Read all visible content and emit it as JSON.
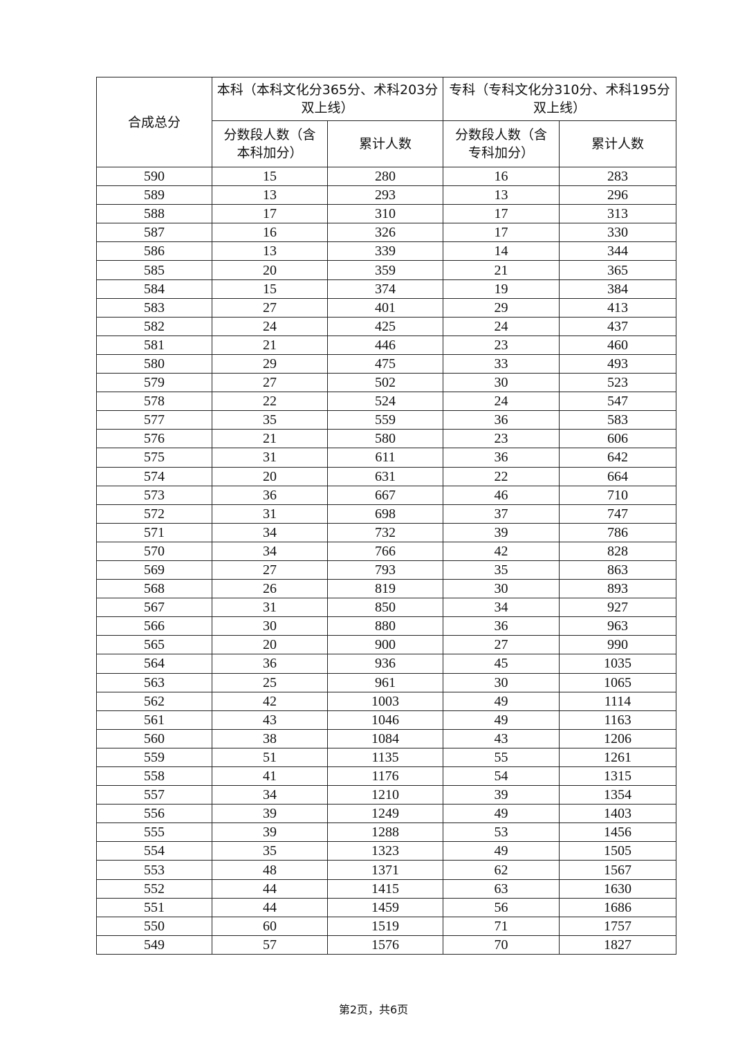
{
  "table": {
    "headers": {
      "total_score": "合成总分",
      "undergrad": "本科（本科文化分365分、术科203分双上线）",
      "junior": "专科（专科文化分310分、术科195分双上线）",
      "undergrad_segment": "分数段人数（含本科加分）",
      "undergrad_cumulative": "累计人数",
      "junior_segment": "分数段人数（含专科加分）",
      "junior_cumulative": "累计人数"
    },
    "rows": [
      [
        "590",
        "15",
        "280",
        "16",
        "283"
      ],
      [
        "589",
        "13",
        "293",
        "13",
        "296"
      ],
      [
        "588",
        "17",
        "310",
        "17",
        "313"
      ],
      [
        "587",
        "16",
        "326",
        "17",
        "330"
      ],
      [
        "586",
        "13",
        "339",
        "14",
        "344"
      ],
      [
        "585",
        "20",
        "359",
        "21",
        "365"
      ],
      [
        "584",
        "15",
        "374",
        "19",
        "384"
      ],
      [
        "583",
        "27",
        "401",
        "29",
        "413"
      ],
      [
        "582",
        "24",
        "425",
        "24",
        "437"
      ],
      [
        "581",
        "21",
        "446",
        "23",
        "460"
      ],
      [
        "580",
        "29",
        "475",
        "33",
        "493"
      ],
      [
        "579",
        "27",
        "502",
        "30",
        "523"
      ],
      [
        "578",
        "22",
        "524",
        "24",
        "547"
      ],
      [
        "577",
        "35",
        "559",
        "36",
        "583"
      ],
      [
        "576",
        "21",
        "580",
        "23",
        "606"
      ],
      [
        "575",
        "31",
        "611",
        "36",
        "642"
      ],
      [
        "574",
        "20",
        "631",
        "22",
        "664"
      ],
      [
        "573",
        "36",
        "667",
        "46",
        "710"
      ],
      [
        "572",
        "31",
        "698",
        "37",
        "747"
      ],
      [
        "571",
        "34",
        "732",
        "39",
        "786"
      ],
      [
        "570",
        "34",
        "766",
        "42",
        "828"
      ],
      [
        "569",
        "27",
        "793",
        "35",
        "863"
      ],
      [
        "568",
        "26",
        "819",
        "30",
        "893"
      ],
      [
        "567",
        "31",
        "850",
        "34",
        "927"
      ],
      [
        "566",
        "30",
        "880",
        "36",
        "963"
      ],
      [
        "565",
        "20",
        "900",
        "27",
        "990"
      ],
      [
        "564",
        "36",
        "936",
        "45",
        "1035"
      ],
      [
        "563",
        "25",
        "961",
        "30",
        "1065"
      ],
      [
        "562",
        "42",
        "1003",
        "49",
        "1114"
      ],
      [
        "561",
        "43",
        "1046",
        "49",
        "1163"
      ],
      [
        "560",
        "38",
        "1084",
        "43",
        "1206"
      ],
      [
        "559",
        "51",
        "1135",
        "55",
        "1261"
      ],
      [
        "558",
        "41",
        "1176",
        "54",
        "1315"
      ],
      [
        "557",
        "34",
        "1210",
        "39",
        "1354"
      ],
      [
        "556",
        "39",
        "1249",
        "49",
        "1403"
      ],
      [
        "555",
        "39",
        "1288",
        "53",
        "1456"
      ],
      [
        "554",
        "35",
        "1323",
        "49",
        "1505"
      ],
      [
        "553",
        "48",
        "1371",
        "62",
        "1567"
      ],
      [
        "552",
        "44",
        "1415",
        "63",
        "1630"
      ],
      [
        "551",
        "44",
        "1459",
        "56",
        "1686"
      ],
      [
        "550",
        "60",
        "1519",
        "71",
        "1757"
      ],
      [
        "549",
        "57",
        "1576",
        "70",
        "1827"
      ]
    ]
  },
  "footer": {
    "page_info": "第2页，共6页"
  }
}
